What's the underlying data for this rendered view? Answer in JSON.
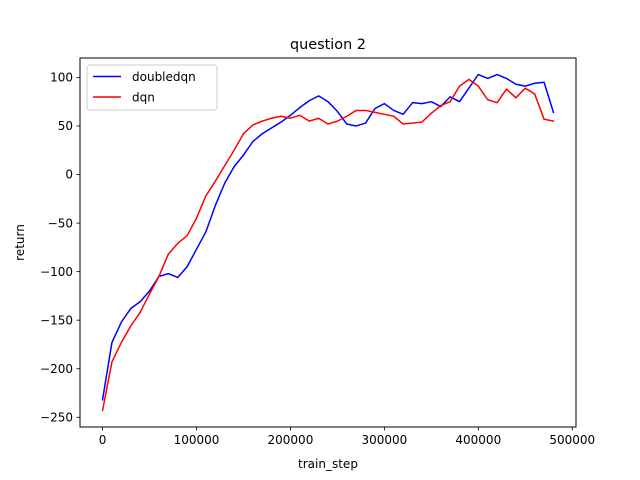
{
  "chart_data": {
    "type": "line",
    "title": "question 2",
    "xlabel": "train_step",
    "ylabel": "return",
    "xlim": [
      -24000,
      504000
    ],
    "ylim": [
      -260,
      120
    ],
    "xticks": [
      0,
      100000,
      200000,
      300000,
      400000,
      500000
    ],
    "xtick_labels": [
      "0",
      "100000",
      "200000",
      "300000",
      "400000",
      "500000"
    ],
    "yticks": [
      -250,
      -200,
      -150,
      -100,
      -50,
      0,
      50,
      100
    ],
    "ytick_labels": [
      "−250",
      "−200",
      "−150",
      "−100",
      "−50",
      "0",
      "50",
      "100"
    ],
    "grid": false,
    "legend_position": "top-left",
    "series": [
      {
        "name": "doubledqn",
        "color": "#0000ff",
        "x": [
          0,
          10000,
          20000,
          30000,
          40000,
          50000,
          60000,
          70000,
          80000,
          90000,
          100000,
          110000,
          120000,
          130000,
          140000,
          150000,
          160000,
          170000,
          180000,
          190000,
          200000,
          210000,
          220000,
          230000,
          240000,
          250000,
          260000,
          270000,
          280000,
          290000,
          300000,
          310000,
          320000,
          330000,
          340000,
          350000,
          360000,
          370000,
          380000,
          390000,
          400000,
          410000,
          420000,
          430000,
          440000,
          450000,
          460000,
          470000,
          480000
        ],
        "y": [
          -232,
          -173,
          -152,
          -138,
          -131,
          -120,
          -105,
          -102,
          -106,
          -95,
          -77,
          -59,
          -32,
          -9,
          8,
          20,
          34,
          42,
          48,
          54,
          61,
          69,
          76,
          81,
          75,
          65,
          52,
          50,
          53,
          68,
          73,
          66,
          62,
          74,
          73,
          75,
          70,
          80,
          75,
          89,
          103,
          99,
          103,
          99,
          93,
          91,
          94,
          95,
          64
        ]
      },
      {
        "name": "dqn",
        "color": "#ff0000",
        "x": [
          0,
          10000,
          20000,
          30000,
          40000,
          50000,
          60000,
          70000,
          80000,
          90000,
          100000,
          110000,
          120000,
          130000,
          140000,
          150000,
          160000,
          170000,
          180000,
          190000,
          200000,
          210000,
          220000,
          230000,
          240000,
          250000,
          260000,
          270000,
          280000,
          290000,
          300000,
          310000,
          320000,
          330000,
          340000,
          350000,
          360000,
          370000,
          380000,
          390000,
          400000,
          410000,
          420000,
          430000,
          440000,
          450000,
          460000,
          470000,
          480000
        ],
        "y": [
          -243,
          -193,
          -173,
          -156,
          -142,
          -123,
          -105,
          -82,
          -71,
          -63,
          -45,
          -22,
          -7,
          9,
          25,
          42,
          51,
          55,
          58,
          60,
          58,
          61,
          55,
          58,
          52,
          55,
          60,
          66,
          66,
          64,
          62,
          60,
          52,
          53,
          54,
          63,
          71,
          75,
          91,
          98,
          91,
          77,
          74,
          88,
          79,
          89,
          83,
          57,
          55
        ]
      }
    ]
  }
}
